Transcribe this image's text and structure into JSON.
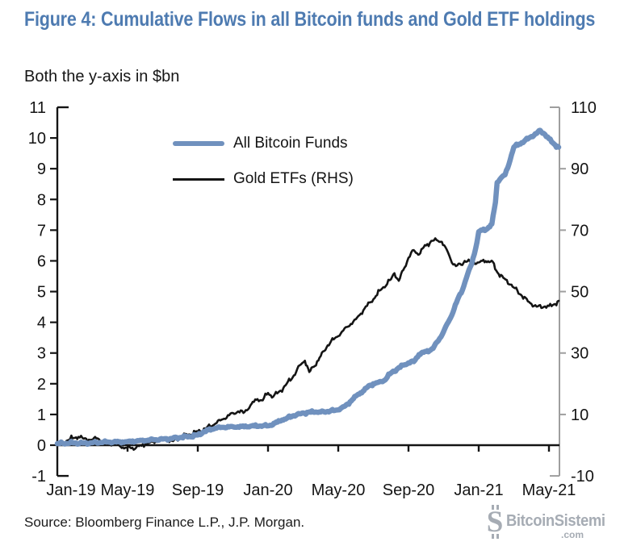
{
  "header": {
    "title": "Figure 4: Cumulative Flows in all Bitcoin funds and Gold ETF holdings",
    "subtitle": "Both the y-axis in $bn"
  },
  "footer": {
    "source": "Source: Bloomberg Finance L.P., J.P. Morgan.",
    "watermark_name": "BitcoinSistemi",
    "watermark_tld": ".com"
  },
  "colors": {
    "title_blue": "#4e7bb1",
    "bitcoin_line": "#7091be",
    "gold_line": "#141414",
    "axis_black": "#141414",
    "right_axis_gray": "#9e9e9e",
    "watermark_gray": "#a6acb4"
  },
  "chart_data": {
    "type": "line",
    "title": "Cumulative Flows in all Bitcoin funds and Gold ETF holdings",
    "units_note": "Both the y-axis in $bn",
    "x_unit": "months since Jan-2019",
    "x_tick_positions": [
      0,
      4,
      8,
      12,
      16,
      20,
      24,
      28
    ],
    "x_tick_labels": [
      "Jan-19",
      "May-19",
      "Sep-19",
      "Jan-20",
      "May-20",
      "Sep-20",
      "Jan-21",
      "May-21"
    ],
    "left_axis": {
      "range": [
        -1,
        11
      ],
      "ticks": [
        11,
        10,
        9,
        8,
        7,
        6,
        5,
        4,
        3,
        2,
        1,
        0,
        -1
      ],
      "series": "All Bitcoin Funds"
    },
    "right_axis": {
      "range": [
        -10,
        110
      ],
      "ticks": [
        110,
        90,
        70,
        50,
        30,
        10,
        -10
      ],
      "series": "Gold ETFs"
    },
    "grid": false,
    "legend_position": "top-left-inside",
    "legend": [
      {
        "label": "All Bitcoin Funds",
        "axis": "left",
        "color": "#7091be"
      },
      {
        "label": "Gold ETFs (RHS)",
        "axis": "right",
        "color": "#141414"
      }
    ],
    "series": [
      {
        "name": "All Bitcoin Funds",
        "axis": "left",
        "points": [
          [
            0,
            0.05
          ],
          [
            0.5,
            0.06
          ],
          [
            1,
            0.07
          ],
          [
            1.5,
            0.07
          ],
          [
            2,
            0.08
          ],
          [
            2.5,
            0.09
          ],
          [
            3,
            0.1
          ],
          [
            3.5,
            0.11
          ],
          [
            4,
            0.12
          ],
          [
            4.5,
            0.13
          ],
          [
            5,
            0.15
          ],
          [
            5.5,
            0.18
          ],
          [
            6,
            0.2
          ],
          [
            6.5,
            0.22
          ],
          [
            7,
            0.25
          ],
          [
            7.5,
            0.28
          ],
          [
            8,
            0.33
          ],
          [
            8.3,
            0.42
          ],
          [
            8.6,
            0.5
          ],
          [
            9,
            0.55
          ],
          [
            9.5,
            0.58
          ],
          [
            10,
            0.6
          ],
          [
            10.5,
            0.61
          ],
          [
            11,
            0.62
          ],
          [
            11.5,
            0.62
          ],
          [
            12,
            0.63
          ],
          [
            12.4,
            0.72
          ],
          [
            12.8,
            0.82
          ],
          [
            13,
            0.85
          ],
          [
            13.4,
            0.95
          ],
          [
            13.8,
            1.02
          ],
          [
            14,
            1.05
          ],
          [
            14.3,
            1.07
          ],
          [
            14.7,
            1.08
          ],
          [
            15,
            1.08
          ],
          [
            15.4,
            1.1
          ],
          [
            15.8,
            1.13
          ],
          [
            16,
            1.15
          ],
          [
            16.4,
            1.28
          ],
          [
            16.8,
            1.48
          ],
          [
            17,
            1.6
          ],
          [
            17.4,
            1.75
          ],
          [
            17.8,
            1.95
          ],
          [
            18,
            2.0
          ],
          [
            18.3,
            2.05
          ],
          [
            18.6,
            2.1
          ],
          [
            19,
            2.35
          ],
          [
            19.4,
            2.5
          ],
          [
            19.8,
            2.62
          ],
          [
            20,
            2.68
          ],
          [
            20.3,
            2.72
          ],
          [
            20.6,
            2.95
          ],
          [
            21,
            3.05
          ],
          [
            21.4,
            3.15
          ],
          [
            21.7,
            3.4
          ],
          [
            22,
            3.7
          ],
          [
            22.4,
            4.15
          ],
          [
            22.8,
            4.75
          ],
          [
            23,
            4.95
          ],
          [
            23.3,
            5.45
          ],
          [
            23.6,
            5.9
          ],
          [
            23.9,
            6.6
          ],
          [
            24,
            6.95
          ],
          [
            24.2,
            7.0
          ],
          [
            24.5,
            7.05
          ],
          [
            24.75,
            7.2
          ],
          [
            24.95,
            7.9
          ],
          [
            25.05,
            8.55
          ],
          [
            25.2,
            8.65
          ],
          [
            25.5,
            8.8
          ],
          [
            25.8,
            9.3
          ],
          [
            26,
            9.7
          ],
          [
            26.3,
            9.8
          ],
          [
            26.6,
            9.9
          ],
          [
            27,
            10.05
          ],
          [
            27.3,
            10.15
          ],
          [
            27.5,
            10.25
          ],
          [
            27.7,
            10.15
          ],
          [
            28,
            9.98
          ],
          [
            28.3,
            9.8
          ],
          [
            28.55,
            9.7
          ]
        ]
      },
      {
        "name": "Gold ETFs (RHS)",
        "axis": "right",
        "points": [
          [
            0,
            0.3
          ],
          [
            0.3,
            1.0
          ],
          [
            0.6,
            1.6
          ],
          [
            1,
            2.4
          ],
          [
            1.2,
            2.7
          ],
          [
            1.5,
            2.1
          ],
          [
            1.8,
            1.8
          ],
          [
            2,
            1.7
          ],
          [
            2.3,
            2.2
          ],
          [
            2.6,
            1.4
          ],
          [
            3,
            0.8
          ],
          [
            3.3,
            0.1
          ],
          [
            3.6,
            -0.5
          ],
          [
            4,
            -0.8
          ],
          [
            4.2,
            -1.0
          ],
          [
            4.5,
            -0.7
          ],
          [
            4.8,
            -0.2
          ],
          [
            5,
            0.3
          ],
          [
            5.4,
            1.1
          ],
          [
            5.8,
            1.7
          ],
          [
            6,
            1.8
          ],
          [
            6.3,
            1.5
          ],
          [
            6.6,
            1.3
          ],
          [
            7,
            2.6
          ],
          [
            7.5,
            3.5
          ],
          [
            8,
            4.5
          ],
          [
            8.5,
            5.7
          ],
          [
            9,
            7.0
          ],
          [
            9.5,
            8.6
          ],
          [
            10,
            10.5
          ],
          [
            10.3,
            11.0
          ],
          [
            10.6,
            10.5
          ],
          [
            11,
            13.0
          ],
          [
            11.4,
            15.0
          ],
          [
            11.7,
            14.6
          ],
          [
            12,
            17.0
          ],
          [
            12.3,
            15.8
          ],
          [
            12.6,
            17.3
          ],
          [
            13,
            19.5
          ],
          [
            13.4,
            22.0
          ],
          [
            13.8,
            26.0
          ],
          [
            14.1,
            27.5
          ],
          [
            14.35,
            23.8
          ],
          [
            14.6,
            25.5
          ],
          [
            15,
            29.0
          ],
          [
            15.4,
            32.5
          ],
          [
            15.8,
            34.8
          ],
          [
            16,
            35.5
          ],
          [
            16.5,
            38.5
          ],
          [
            17,
            41.0
          ],
          [
            17.5,
            44.5
          ],
          [
            18,
            47.5
          ],
          [
            18.5,
            51.0
          ],
          [
            19,
            54.0
          ],
          [
            19.2,
            56.0
          ],
          [
            19.45,
            53.5
          ],
          [
            19.7,
            57.0
          ],
          [
            20,
            61.0
          ],
          [
            20.3,
            63.5
          ],
          [
            20.55,
            62.0
          ],
          [
            20.8,
            64.0
          ],
          [
            21,
            65.0
          ],
          [
            21.3,
            66.5
          ],
          [
            21.6,
            66.8
          ],
          [
            21.9,
            66.2
          ],
          [
            22.1,
            64.5
          ],
          [
            22.4,
            60.5
          ],
          [
            22.7,
            58.3
          ],
          [
            23,
            58.7
          ],
          [
            23.2,
            60.0
          ],
          [
            23.5,
            59.8
          ],
          [
            24,
            59.5
          ],
          [
            24.4,
            59.9
          ],
          [
            24.8,
            59.7
          ],
          [
            25,
            56.8
          ],
          [
            25.4,
            54.5
          ],
          [
            25.8,
            52.3
          ],
          [
            26,
            51.3
          ],
          [
            26.4,
            49.0
          ],
          [
            26.8,
            46.8
          ],
          [
            27,
            46.0
          ],
          [
            27.3,
            45.1
          ],
          [
            27.7,
            45.0
          ],
          [
            28,
            45.3
          ],
          [
            28.3,
            45.9
          ],
          [
            28.55,
            47.0
          ]
        ]
      }
    ]
  }
}
